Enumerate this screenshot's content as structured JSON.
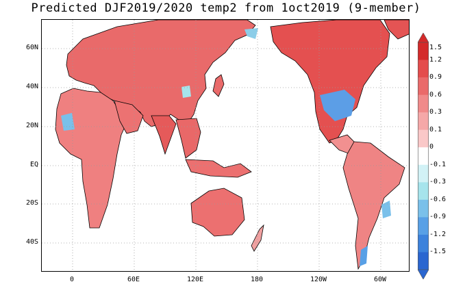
{
  "title": "Predicted DJF2019/2020 temp2 from 1oct2019 (9-member)",
  "map": {
    "lat_labels": [
      "60N",
      "40N",
      "20N",
      "EQ",
      "20S",
      "40S"
    ],
    "lon_labels": [
      "0",
      "60E",
      "120E",
      "180",
      "120W",
      "60W"
    ],
    "gridlines": "dotted"
  },
  "legend": {
    "levels": [
      "1.5",
      "1.2",
      "0.9",
      "0.6",
      "0.3",
      "0.1",
      "0",
      "-0.1",
      "-0.3",
      "-0.6",
      "-0.9",
      "-1.2",
      "-1.5"
    ],
    "colors": [
      "#d42a2a",
      "#e44c4c",
      "#ea6a6a",
      "#f08a8a",
      "#f5a8a8",
      "#fac8c8",
      "#ffffff",
      "#d2f2f6",
      "#a6e4ec",
      "#7ac0ea",
      "#58a0e6",
      "#3c82dc",
      "#2a66d0"
    ]
  }
}
